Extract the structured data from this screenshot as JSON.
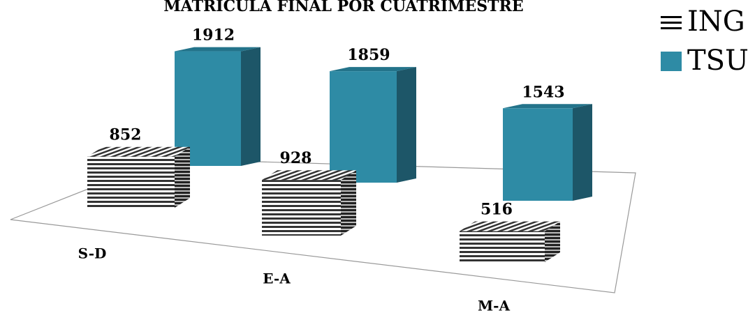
{
  "chart_data": {
    "type": "bar3d",
    "title": "MATRICULA FINAL POR CUATRIMESTRE",
    "categories": [
      "S-D",
      "E-A",
      "M-A"
    ],
    "series": [
      {
        "name": "ING",
        "color": "#000000",
        "values": [
          852,
          928,
          516
        ]
      },
      {
        "name": "TSU",
        "color": "#2e8ba5",
        "values": [
          1912,
          1859,
          1543
        ]
      }
    ]
  }
}
